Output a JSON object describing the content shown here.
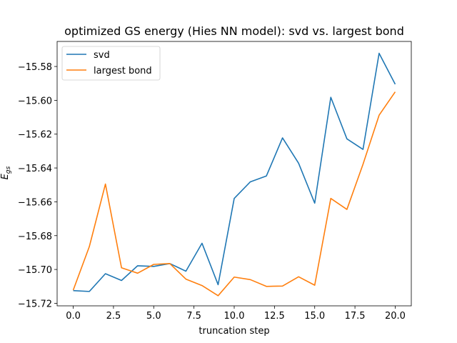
{
  "chart_data": {
    "type": "line",
    "title": "optimized GS energy (Hies NN model): svd vs. largest bond",
    "xlabel": "truncation step",
    "ylabel": "E_gs",
    "xlim": [
      -1.0,
      21.0
    ],
    "ylim": [
      -15.7215,
      -15.5652
    ],
    "xticks": [
      0.0,
      2.5,
      5.0,
      7.5,
      10.0,
      12.5,
      15.0,
      17.5,
      20.0
    ],
    "xtick_labels": [
      "0.0",
      "2.5",
      "5.0",
      "7.5",
      "10.0",
      "12.5",
      "15.0",
      "17.5",
      "20.0"
    ],
    "yticks": [
      -15.72,
      -15.7,
      -15.68,
      -15.66,
      -15.64,
      -15.62,
      -15.6,
      -15.58
    ],
    "ytick_labels": [
      "−15.72",
      "−15.70",
      "−15.68",
      "−15.66",
      "−15.64",
      "−15.62",
      "−15.60",
      "−15.58"
    ],
    "grid": false,
    "legend_position": "top-left",
    "x": [
      0,
      1,
      2,
      3,
      4,
      5,
      6,
      7,
      8,
      9,
      10,
      11,
      12,
      13,
      14,
      15,
      16,
      17,
      18,
      19,
      20
    ],
    "series": [
      {
        "name": "svd",
        "color": "#1f77b4",
        "values": [
          -15.7125,
          -15.713,
          -15.7025,
          -15.7065,
          -15.6978,
          -15.6982,
          -15.6965,
          -15.701,
          -15.6845,
          -15.709,
          -15.658,
          -15.6482,
          -15.6447,
          -15.6222,
          -15.6372,
          -15.6608,
          -15.5982,
          -15.6228,
          -15.629,
          -15.5722,
          -15.5905
        ]
      },
      {
        "name": "largest bond",
        "color": "#ff7f0e",
        "values": [
          -15.7122,
          -15.6865,
          -15.6495,
          -15.699,
          -15.7022,
          -15.697,
          -15.6965,
          -15.7057,
          -15.7095,
          -15.7155,
          -15.7045,
          -15.706,
          -15.71,
          -15.7098,
          -15.7043,
          -15.7093,
          -15.658,
          -15.6645,
          -15.6378,
          -15.6088,
          -15.595
        ]
      }
    ]
  }
}
